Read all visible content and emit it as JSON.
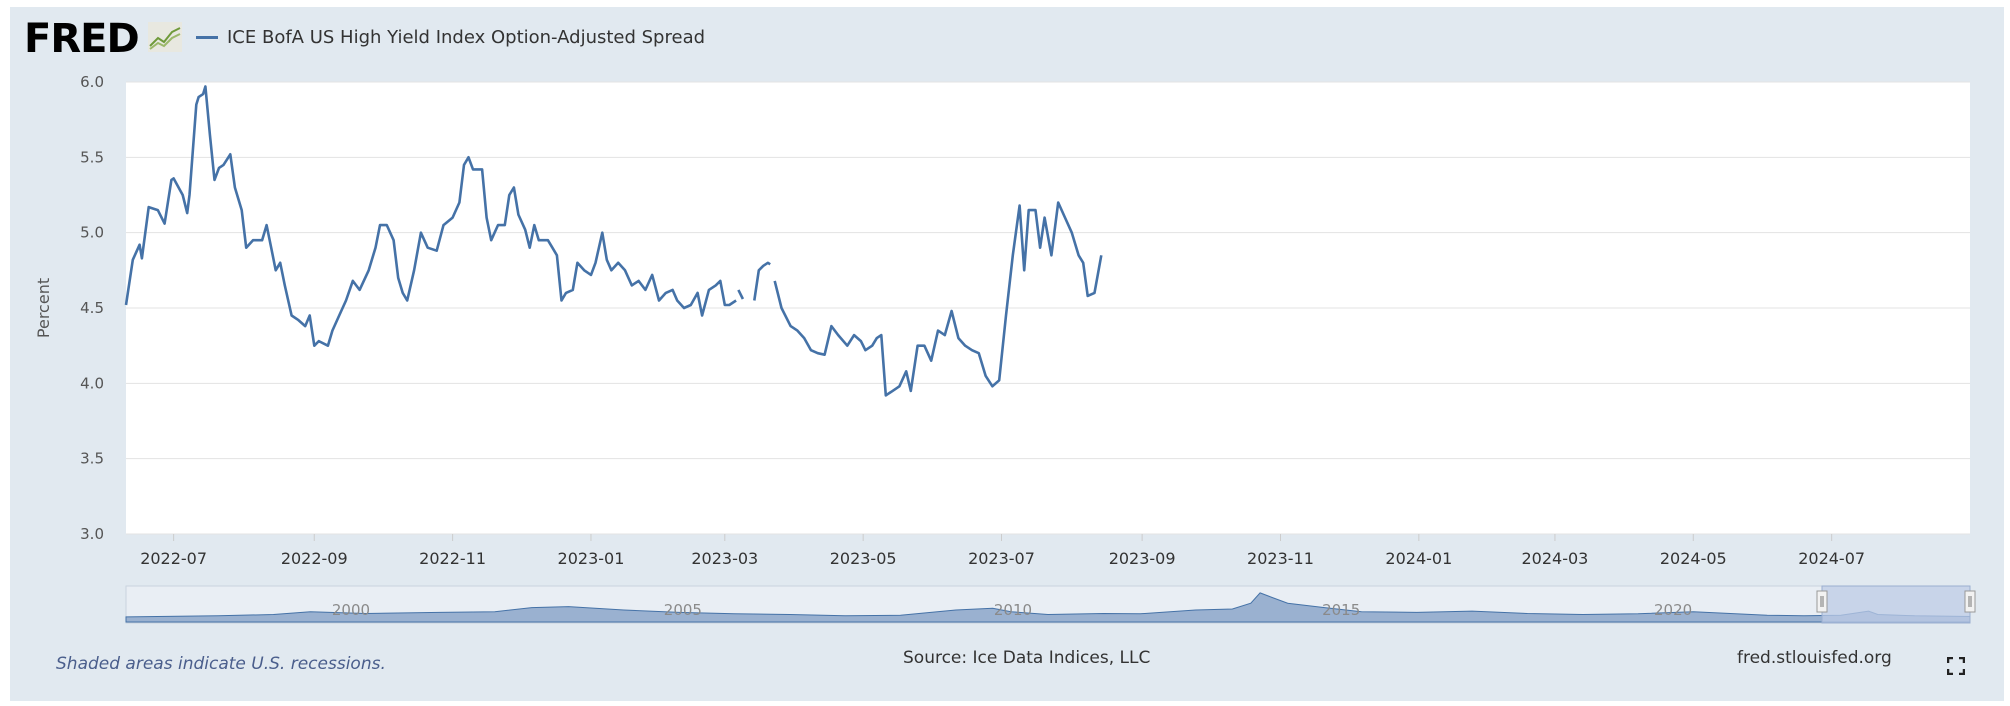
{
  "header": {
    "logo_text": "FRED",
    "legend_label": "ICE BofA US High Yield Index Option-Adjusted Spread"
  },
  "colors": {
    "series": "#4572a7",
    "panel": "#e1e9f0",
    "plot_bg": "#ffffff",
    "navigator_fill": "#7f9cc4",
    "navigator_selection": "#bccbe6"
  },
  "chart_data": {
    "type": "line",
    "title": "",
    "xlabel": "",
    "ylabel": "Percent",
    "ylim": [
      3.0,
      6.0
    ],
    "y_ticks": [
      "3.0",
      "3.5",
      "4.0",
      "4.5",
      "5.0",
      "5.5",
      "6.0"
    ],
    "x_tick_labels": [
      "2022-07",
      "2022-09",
      "2022-11",
      "2023-01",
      "2023-03",
      "2023-05",
      "2023-07",
      "2023-09",
      "2023-11",
      "2024-01",
      "2024-03",
      "2024-05",
      "2024-07"
    ],
    "x_range": [
      "2022-06-10",
      "2024-08-31"
    ],
    "grid": true,
    "legend_position": "top-left",
    "series": [
      {
        "name": "ICE BofA US High Yield Index Option-Adjusted Spread",
        "segments": [
          [
            [
              "2022-06-10",
              4.52
            ],
            [
              "2022-06-13",
              4.82
            ],
            [
              "2022-06-16",
              4.92
            ],
            [
              "2022-06-17",
              4.83
            ],
            [
              "2022-06-20",
              5.17
            ],
            [
              "2022-06-24",
              5.15
            ],
            [
              "2022-06-27",
              5.06
            ],
            [
              "2022-06-30",
              5.35
            ],
            [
              "2022-07-01",
              5.36
            ],
            [
              "2022-07-05",
              5.25
            ],
            [
              "2022-07-07",
              5.13
            ],
            [
              "2022-07-08",
              5.25
            ],
            [
              "2022-07-11",
              5.85
            ],
            [
              "2022-07-12",
              5.9
            ],
            [
              "2022-07-14",
              5.92
            ],
            [
              "2022-07-15",
              5.97
            ],
            [
              "2022-07-17",
              5.65
            ],
            [
              "2022-07-19",
              5.35
            ],
            [
              "2022-07-21",
              5.43
            ],
            [
              "2022-07-23",
              5.45
            ],
            [
              "2022-07-26",
              5.52
            ],
            [
              "2022-07-28",
              5.3
            ],
            [
              "2022-07-31",
              5.15
            ],
            [
              "2022-08-02",
              4.9
            ],
            [
              "2022-08-05",
              4.95
            ],
            [
              "2022-08-09",
              4.95
            ],
            [
              "2022-08-11",
              5.05
            ],
            [
              "2022-08-13",
              4.9
            ],
            [
              "2022-08-15",
              4.75
            ],
            [
              "2022-08-17",
              4.8
            ],
            [
              "2022-08-19",
              4.65
            ],
            [
              "2022-08-22",
              4.45
            ],
            [
              "2022-08-25",
              4.42
            ],
            [
              "2022-08-28",
              4.38
            ],
            [
              "2022-08-30",
              4.45
            ],
            [
              "2022-09-01",
              4.25
            ],
            [
              "2022-09-03",
              4.28
            ],
            [
              "2022-09-07",
              4.25
            ],
            [
              "2022-09-09",
              4.35
            ],
            [
              "2022-09-12",
              4.45
            ],
            [
              "2022-09-15",
              4.55
            ],
            [
              "2022-09-18",
              4.68
            ],
            [
              "2022-09-21",
              4.62
            ],
            [
              "2022-09-25",
              4.75
            ],
            [
              "2022-09-28",
              4.9
            ],
            [
              "2022-09-30",
              5.05
            ],
            [
              "2022-10-03",
              5.05
            ],
            [
              "2022-10-06",
              4.95
            ],
            [
              "2022-10-08",
              4.7
            ],
            [
              "2022-10-10",
              4.6
            ],
            [
              "2022-10-12",
              4.55
            ],
            [
              "2022-10-15",
              4.75
            ],
            [
              "2022-10-18",
              5.0
            ],
            [
              "2022-10-21",
              4.9
            ],
            [
              "2022-10-25",
              4.88
            ],
            [
              "2022-10-28",
              5.05
            ],
            [
              "2022-11-01",
              5.1
            ],
            [
              "2022-11-04",
              5.2
            ],
            [
              "2022-11-06",
              5.45
            ],
            [
              "2022-11-08",
              5.5
            ],
            [
              "2022-11-10",
              5.42
            ],
            [
              "2022-11-14",
              5.42
            ],
            [
              "2022-11-16",
              5.1
            ],
            [
              "2022-11-18",
              4.95
            ],
            [
              "2022-11-21",
              5.05
            ],
            [
              "2022-11-24",
              5.05
            ],
            [
              "2022-11-26",
              5.25
            ],
            [
              "2022-11-28",
              5.3
            ],
            [
              "2022-11-30",
              5.12
            ],
            [
              "2022-12-03",
              5.02
            ],
            [
              "2022-12-05",
              4.9
            ],
            [
              "2022-12-07",
              5.05
            ],
            [
              "2022-12-09",
              4.95
            ],
            [
              "2022-12-11",
              4.95
            ],
            [
              "2022-12-13",
              4.95
            ],
            [
              "2022-12-15",
              4.9
            ],
            [
              "2022-12-17",
              4.85
            ],
            [
              "2022-12-19",
              4.55
            ],
            [
              "2022-12-21",
              4.6
            ],
            [
              "2022-12-24",
              4.62
            ],
            [
              "2022-12-26",
              4.8
            ],
            [
              "2022-12-29",
              4.75
            ],
            [
              "2023-01-01",
              4.72
            ],
            [
              "2023-01-03",
              4.8
            ],
            [
              "2023-01-06",
              5.0
            ],
            [
              "2023-01-08",
              4.82
            ],
            [
              "2023-01-10",
              4.75
            ],
            [
              "2023-01-13",
              4.8
            ],
            [
              "2023-01-16",
              4.75
            ],
            [
              "2023-01-19",
              4.65
            ],
            [
              "2023-01-22",
              4.68
            ],
            [
              "2023-01-25",
              4.62
            ],
            [
              "2023-01-28",
              4.72
            ],
            [
              "2023-01-31",
              4.55
            ],
            [
              "2023-02-03",
              4.6
            ],
            [
              "2023-02-06",
              4.62
            ],
            [
              "2023-02-08",
              4.55
            ],
            [
              "2023-02-11",
              4.5
            ],
            [
              "2023-02-14",
              4.52
            ],
            [
              "2023-02-17",
              4.6
            ],
            [
              "2023-02-19",
              4.45
            ],
            [
              "2023-02-22",
              4.62
            ],
            [
              "2023-02-25",
              4.65
            ],
            [
              "2023-02-27",
              4.68
            ],
            [
              "2023-03-01",
              4.52
            ],
            [
              "2023-03-03",
              4.52
            ],
            [
              "2023-03-06",
              4.55
            ]
          ],
          [
            [
              "2023-03-07",
              4.62
            ],
            [
              "2023-03-09",
              4.56
            ]
          ],
          [
            [
              "2023-03-14",
              4.55
            ],
            [
              "2023-03-16",
              4.75
            ],
            [
              "2023-03-18",
              4.78
            ],
            [
              "2023-03-20",
              4.8
            ],
            [
              "2023-03-21",
              4.79
            ]
          ],
          [
            [
              "2023-03-23",
              4.68
            ],
            [
              "2023-03-26",
              4.5
            ],
            [
              "2023-03-30",
              4.38
            ],
            [
              "2023-04-02",
              4.35
            ],
            [
              "2023-04-05",
              4.3
            ],
            [
              "2023-04-08",
              4.22
            ],
            [
              "2023-04-11",
              4.2
            ],
            [
              "2023-04-14",
              4.19
            ],
            [
              "2023-04-17",
              4.38
            ],
            [
              "2023-04-20",
              4.32
            ],
            [
              "2023-04-24",
              4.25
            ],
            [
              "2023-04-27",
              4.32
            ],
            [
              "2023-04-30",
              4.28
            ],
            [
              "2023-05-02",
              4.22
            ],
            [
              "2023-05-05",
              4.25
            ],
            [
              "2023-05-07",
              4.3
            ],
            [
              "2023-05-09",
              4.32
            ],
            [
              "2023-05-11",
              3.92
            ],
            [
              "2023-05-14",
              3.95
            ],
            [
              "2023-05-17",
              3.98
            ],
            [
              "2023-05-20",
              4.08
            ],
            [
              "2023-05-22",
              3.95
            ],
            [
              "2023-05-25",
              4.25
            ],
            [
              "2023-05-28",
              4.25
            ],
            [
              "2023-05-31",
              4.15
            ],
            [
              "2023-06-03",
              4.35
            ],
            [
              "2023-06-06",
              4.32
            ],
            [
              "2023-06-09",
              4.48
            ],
            [
              "2023-06-12",
              4.3
            ],
            [
              "2023-06-15",
              4.25
            ],
            [
              "2023-06-18",
              4.22
            ],
            [
              "2023-06-21",
              4.2
            ],
            [
              "2023-06-24",
              4.05
            ],
            [
              "2023-06-27",
              3.98
            ],
            [
              "2023-06-30",
              4.02
            ],
            [
              "2023-07-03",
              4.45
            ],
            [
              "2023-07-06",
              4.85
            ],
            [
              "2023-07-09",
              5.18
            ],
            [
              "2023-07-11",
              4.75
            ],
            [
              "2023-07-13",
              5.15
            ],
            [
              "2023-07-16",
              5.15
            ],
            [
              "2023-07-18",
              4.9
            ],
            [
              "2023-07-20",
              5.1
            ],
            [
              "2023-07-23",
              4.85
            ],
            [
              "2023-07-26",
              5.2
            ],
            [
              "2023-07-29",
              5.1
            ],
            [
              "2023-08-01",
              5.0
            ],
            [
              "2023-08-04",
              4.85
            ],
            [
              "2023-08-06",
              4.8
            ],
            [
              "2023-08-08",
              4.58
            ],
            [
              "2023-08-11",
              4.6
            ],
            [
              "2023-08-14",
              4.85
            ]
          ]
        ]
      }
    ]
  },
  "navigator": {
    "year_labels": [
      "2000",
      "2005",
      "2010",
      "2015",
      "2020"
    ]
  },
  "footer": {
    "recession_note": "Shaded areas indicate U.S. recessions.",
    "source": "Source: Ice Data Indices, LLC",
    "site": "fred.stlouisfed.org"
  }
}
